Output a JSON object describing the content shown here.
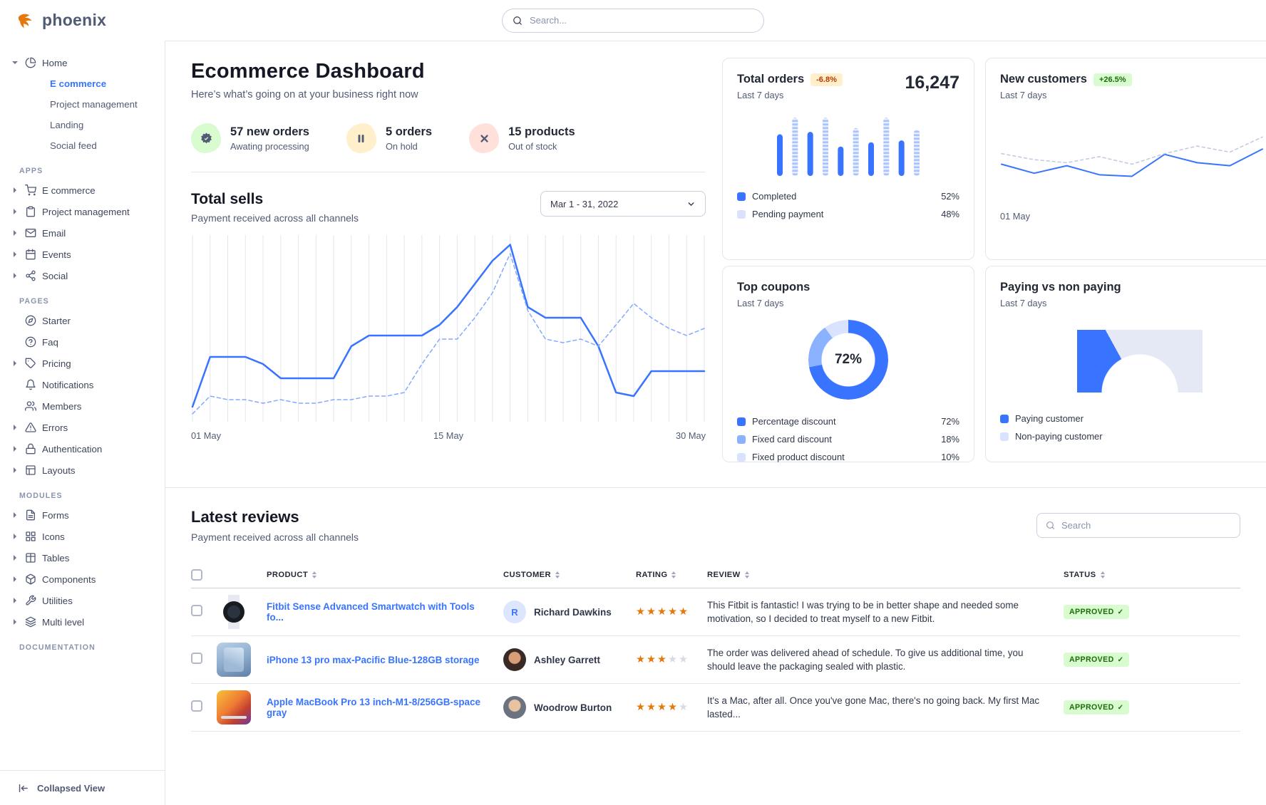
{
  "brand": {
    "name": "phoenix"
  },
  "topnav": {
    "search_placeholder": "Search..."
  },
  "sidebar": {
    "home": {
      "label": "Home",
      "children": [
        {
          "label": "E commerce",
          "active": true
        },
        {
          "label": "Project management"
        },
        {
          "label": "Landing"
        },
        {
          "label": "Social feed"
        }
      ]
    },
    "sections": [
      {
        "label": "APPS",
        "items": [
          {
            "label": "E commerce"
          },
          {
            "label": "Project management"
          },
          {
            "label": "Email"
          },
          {
            "label": "Events"
          },
          {
            "label": "Social"
          }
        ]
      },
      {
        "label": "PAGES",
        "items": [
          {
            "label": "Starter"
          },
          {
            "label": "Faq"
          },
          {
            "label": "Pricing"
          },
          {
            "label": "Notifications"
          },
          {
            "label": "Members"
          },
          {
            "label": "Errors"
          },
          {
            "label": "Authentication"
          },
          {
            "label": "Layouts"
          }
        ]
      },
      {
        "label": "MODULES",
        "items": [
          {
            "label": "Forms"
          },
          {
            "label": "Icons"
          },
          {
            "label": "Tables"
          },
          {
            "label": "Components"
          },
          {
            "label": "Utilities"
          },
          {
            "label": "Multi level"
          }
        ]
      },
      {
        "label": "DOCUMENTATION",
        "items": []
      }
    ],
    "footer_label": "Collapsed View"
  },
  "page": {
    "title": "Ecommerce Dashboard",
    "subtitle": "Here’s what’s going on at your business right now"
  },
  "stats": [
    {
      "value": "57 new orders",
      "label": "Awating processing"
    },
    {
      "value": "5 orders",
      "label": "On hold"
    },
    {
      "value": "15 products",
      "label": "Out of stock"
    }
  ],
  "cards": {
    "total_orders": {
      "title": "Total orders",
      "badge": "-6.8%",
      "period": "Last 7 days",
      "value": "16,247",
      "legend": [
        {
          "label": "Completed",
          "value": "52%",
          "color": "#3874ff"
        },
        {
          "label": "Pending payment",
          "value": "48%",
          "color": "#d9e2ff"
        }
      ]
    },
    "new_customers": {
      "title": "New customers",
      "badge": "+26.5%",
      "period": "Last 7 days"
    },
    "top_coupons": {
      "title": "Top coupons",
      "period": "Last 7 days",
      "legend": [
        {
          "label": "Percentage discount",
          "value": "72%",
          "color": "#3874ff"
        },
        {
          "label": "Fixed card discount",
          "value": "18%",
          "color": "#8ab2ff"
        },
        {
          "label": "Fixed product discount",
          "value": "10%",
          "color": "#d9e2ff"
        }
      ]
    },
    "paying": {
      "title": "Paying vs non paying",
      "period": "Last 7 days",
      "legend": [
        {
          "label": "Paying customer",
          "color": "#3874ff"
        },
        {
          "label": "Non-paying customer",
          "color": "#d9e2ff"
        }
      ]
    }
  },
  "reviews": {
    "title": "Latest reviews",
    "subtitle": "Payment received across all channels",
    "search_placeholder": "Search",
    "columns": [
      "PRODUCT",
      "CUSTOMER",
      "RATING",
      "REVIEW",
      "STATUS"
    ],
    "rows": [
      {
        "product": "Fitbit Sense Advanced Smartwatch with Tools fo...",
        "customer": "Richard Dawkins",
        "initial": "R",
        "rating": 5,
        "review": "This Fitbit is fantastic! I was trying to be in better shape and needed some motivation, so I decided to treat myself to a new Fitbit.",
        "status": "APPROVED"
      },
      {
        "product": "iPhone 13 pro max-Pacific Blue-128GB storage",
        "customer": "Ashley Garrett",
        "rating": 3,
        "review": "The order was delivered ahead of schedule. To give us additional time, you should leave the packaging sealed with plastic.",
        "status": "APPROVED"
      },
      {
        "product": "Apple MacBook Pro 13 inch-M1-8/256GB-space gray",
        "customer": "Woodrow Burton",
        "rating": 4,
        "review": "It's a Mac, after all. Once you've gone Mac, there's no going back. My first Mac lasted...",
        "status": "APPROVED"
      }
    ]
  },
  "chart_data": [
    {
      "id": "total_sells",
      "type": "line",
      "title": "Total sells",
      "subtitle": "Payment received across all channels",
      "date_range": "Mar 1 - 31, 2022",
      "x_ticks": [
        "01 May",
        "15 May",
        "30 May"
      ],
      "ylim": [
        0,
        100
      ],
      "grid": "vertical",
      "series": [
        {
          "name": "Current period",
          "color": "#3874ff",
          "width": 2.5,
          "values": [
            6,
            34,
            34,
            34,
            30,
            22,
            22,
            22,
            22,
            40,
            46,
            46,
            46,
            46,
            52,
            62,
            75,
            88,
            97,
            62,
            56,
            56,
            56,
            40,
            14,
            12,
            26,
            26,
            26,
            26
          ]
        },
        {
          "name": "Previous period",
          "color": "#85a9ff",
          "width": 1.5,
          "dash": "5,4",
          "values": [
            2,
            12,
            10,
            10,
            8,
            10,
            8,
            8,
            10,
            10,
            12,
            12,
            14,
            30,
            44,
            44,
            56,
            70,
            92,
            60,
            44,
            42,
            44,
            40,
            52,
            64,
            56,
            50,
            46,
            50
          ]
        }
      ]
    },
    {
      "id": "total_orders",
      "type": "bar",
      "values": [
        68,
        95,
        72,
        95,
        48,
        78,
        55,
        95,
        58,
        75
      ],
      "bar_color": "#3874ff",
      "alt_striped": true,
      "legend_values": {
        "completed": 52,
        "pending": 48
      }
    },
    {
      "id": "new_customers",
      "type": "line",
      "x_ticks": [
        "01 May"
      ],
      "ylim": [
        0,
        100
      ],
      "series": [
        {
          "name": "New customers",
          "color": "#3874ff",
          "width": 2,
          "values": [
            42,
            30,
            40,
            28,
            26,
            55,
            44,
            40,
            62
          ]
        },
        {
          "name": "Previous period",
          "color": "#c0c9de",
          "width": 1.5,
          "dash": "4,4",
          "values": [
            56,
            48,
            44,
            52,
            42,
            56,
            66,
            58,
            78
          ]
        }
      ]
    },
    {
      "id": "top_coupons",
      "type": "pie",
      "center_label": "72%",
      "segments": [
        {
          "label": "Percentage discount",
          "value": 72,
          "color": "#3874ff"
        },
        {
          "label": "Fixed card discount",
          "value": 18,
          "color": "#8ab2ff"
        },
        {
          "label": "Fixed product discount",
          "value": 10,
          "color": "#d9e2ff"
        }
      ]
    },
    {
      "id": "paying_gauge",
      "type": "gauge",
      "value": 34,
      "color": "#3874ff",
      "track": "#e4e9f5"
    }
  ]
}
